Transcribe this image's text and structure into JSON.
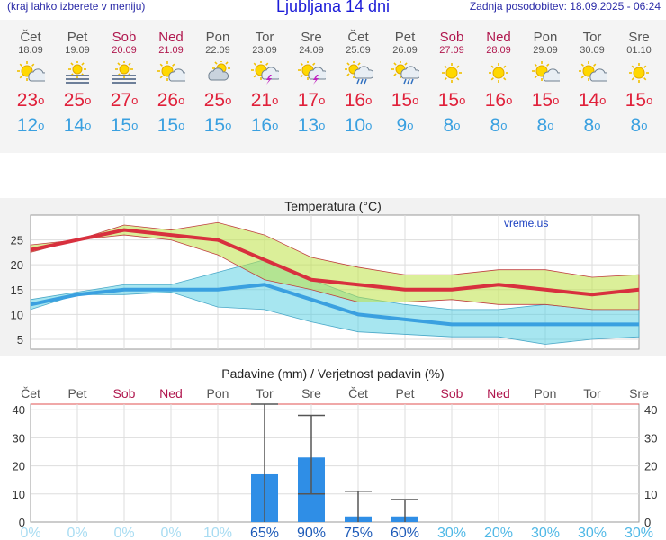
{
  "header": {
    "left_text": "(kraj lahko izberete v meniju)",
    "title": "Ljubljana 14 dni",
    "updated": "Zadnja posodobitev: 18.09.2025 - 06:24"
  },
  "days": [
    {
      "name": "Čet",
      "date": "18.09",
      "weekend": false,
      "icon": "sun-cloud-icon",
      "tmax": "23",
      "tmin": "12"
    },
    {
      "name": "Pet",
      "date": "19.09",
      "weekend": false,
      "icon": "sun-fog-icon",
      "tmax": "25",
      "tmin": "14"
    },
    {
      "name": "Sob",
      "date": "20.09",
      "weekend": true,
      "icon": "sun-fog-icon",
      "tmax": "27",
      "tmin": "15"
    },
    {
      "name": "Ned",
      "date": "21.09",
      "weekend": true,
      "icon": "sun-cloud-icon",
      "tmax": "26",
      "tmin": "15"
    },
    {
      "name": "Pon",
      "date": "22.09",
      "weekend": false,
      "icon": "cloud-sun-icon",
      "tmax": "25",
      "tmin": "15"
    },
    {
      "name": "Tor",
      "date": "23.09",
      "weekend": false,
      "icon": "sun-thunder-icon",
      "tmax": "21",
      "tmin": "16"
    },
    {
      "name": "Sre",
      "date": "24.09",
      "weekend": false,
      "icon": "sun-thunder-icon",
      "tmax": "17",
      "tmin": "13"
    },
    {
      "name": "Čet",
      "date": "25.09",
      "weekend": false,
      "icon": "sun-rain-icon",
      "tmax": "16",
      "tmin": "10"
    },
    {
      "name": "Pet",
      "date": "26.09",
      "weekend": false,
      "icon": "sun-rain-icon",
      "tmax": "15",
      "tmin": "9"
    },
    {
      "name": "Sob",
      "date": "27.09",
      "weekend": true,
      "icon": "sun-icon",
      "tmax": "15",
      "tmin": "8"
    },
    {
      "name": "Ned",
      "date": "28.09",
      "weekend": true,
      "icon": "sun-icon",
      "tmax": "16",
      "tmin": "8"
    },
    {
      "name": "Pon",
      "date": "29.09",
      "weekend": false,
      "icon": "sun-cloud-icon",
      "tmax": "15",
      "tmin": "8"
    },
    {
      "name": "Tor",
      "date": "30.09",
      "weekend": false,
      "icon": "sun-cloud-icon",
      "tmax": "14",
      "tmin": "8"
    },
    {
      "name": "Sre",
      "date": "01.10",
      "weekend": false,
      "icon": "sun-icon",
      "tmax": "15",
      "tmin": "8"
    }
  ],
  "degree_symbol": "o",
  "colors": {
    "max": "#e0203a",
    "min": "#3aa0e0",
    "weekend": "#b0174e",
    "bar": "#2f8ee6"
  },
  "chart_data": [
    {
      "type": "line",
      "title": "Temperatura (°C)",
      "watermark": "vreme.us",
      "categories": [
        "Čet",
        "Pet",
        "Sob",
        "Ned",
        "Pon",
        "Tor",
        "Sre",
        "Čet",
        "Pet",
        "Sob",
        "Ned",
        "Pon",
        "Tor",
        "Sre"
      ],
      "ylim": [
        3,
        30
      ],
      "yticks": [
        5,
        10,
        15,
        20,
        25
      ],
      "series": [
        {
          "role": "max",
          "values": [
            23,
            25,
            27,
            26,
            25,
            21,
            17,
            16,
            15,
            15,
            16,
            15,
            14,
            15
          ],
          "band_low": [
            22.5,
            25,
            26,
            25,
            22,
            17,
            15,
            12.5,
            12.5,
            13,
            12,
            12,
            11,
            11
          ],
          "band_high": [
            24,
            25,
            28,
            27,
            28.5,
            26,
            21.5,
            19.5,
            18,
            18,
            19,
            19,
            17.5,
            18
          ]
        },
        {
          "role": "min",
          "values": [
            12,
            14,
            15,
            15,
            15,
            16,
            13,
            10,
            9,
            8,
            8,
            8,
            8,
            8
          ],
          "band_low": [
            11,
            14,
            14,
            14.5,
            11.5,
            11,
            8.5,
            6.5,
            6,
            5.5,
            5.5,
            4,
            5,
            5.5
          ],
          "band_high": [
            13,
            14.5,
            16,
            16,
            18.5,
            21,
            17,
            13.5,
            12,
            11,
            11,
            12,
            11,
            11
          ]
        }
      ]
    },
    {
      "type": "bar",
      "title": "Padavine (mm) / Verjetnost padavin (%)",
      "categories": [
        "Čet",
        "Pet",
        "Sob",
        "Ned",
        "Pon",
        "Tor",
        "Sre",
        "Čet",
        "Pet",
        "Sob",
        "Ned",
        "Pon",
        "Tor",
        "Sre"
      ],
      "ylim": [
        0,
        42
      ],
      "yticks": [
        0,
        10,
        20,
        30,
        40
      ],
      "values": [
        0,
        0,
        0,
        0,
        0,
        17,
        23,
        2,
        2,
        0,
        0,
        0,
        0,
        0
      ],
      "err_low": [
        0,
        0,
        0,
        0,
        0,
        0,
        10,
        0,
        0,
        0,
        0,
        0,
        0,
        0
      ],
      "err_high": [
        0,
        0,
        0,
        0,
        0,
        44,
        38,
        11,
        8,
        0,
        0,
        0,
        0,
        0
      ],
      "probability": [
        "0%",
        "0%",
        "0%",
        "0%",
        "10%",
        "65%",
        "90%",
        "75%",
        "60%",
        "30%",
        "20%",
        "30%",
        "30%",
        "30%"
      ]
    }
  ]
}
